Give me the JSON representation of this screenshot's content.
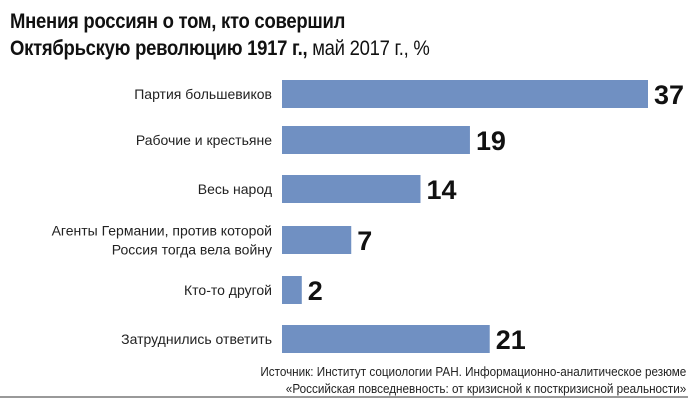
{
  "title_line1": "Мнения россиян о том, кто совершил",
  "title_line2_bold": "Октябрьскую революцию 1917 г.,",
  "title_line2_light": " май 2017 г., %",
  "source_line1": "Источник: Институт социологии РАН. Информационно-аналитическое резюме",
  "source_line2": "«Российская повседневность: от кризисной к посткризисной реальности»",
  "chart_data": {
    "type": "bar",
    "orientation": "horizontal",
    "title": "Мнения россиян о том, кто совершил Октябрьскую революцию 1917 г., май 2017 г., %",
    "categories": [
      [
        "Партия большевиков"
      ],
      [
        "Рабочие и крестьяне"
      ],
      [
        "Весь народ"
      ],
      [
        "Агенты Германии, против которой",
        "Россия тогда вела войну"
      ],
      [
        "Кто-то другой"
      ],
      [
        "Затруднились ответить"
      ]
    ],
    "values": [
      37,
      19,
      14,
      7,
      2,
      21
    ],
    "unit": "%",
    "bar_color": "#7090c2",
    "xlim": [
      0,
      37
    ],
    "grid": false
  }
}
